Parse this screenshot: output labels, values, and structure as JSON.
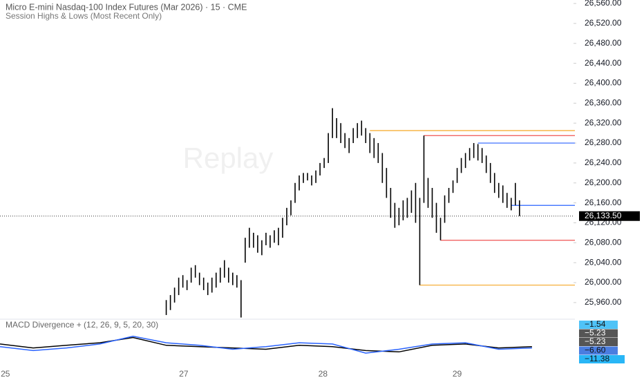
{
  "chart_data": {
    "type": "ohlc",
    "title": "Micro E-mini Nasdaq-100 Index Futures (Mar 2026) · 15 · CME",
    "subtitle": "Session Highs & Lows (Most Recent Only)",
    "watermark": "Replay",
    "color": "#000000",
    "high": [
      25965,
      25975,
      25990,
      26010,
      26015,
      26005,
      26030,
      26035,
      26020,
      26010,
      26000,
      26010,
      26020,
      26030,
      26045,
      26030,
      26020,
      26015,
      26005,
      26090,
      26110,
      26100,
      26095,
      26085,
      26100,
      26095,
      26105,
      26110,
      26130,
      26150,
      26165,
      26200,
      26215,
      26220,
      26220,
      26215,
      26225,
      26240,
      26250,
      26300,
      26350,
      26330,
      26320,
      26300,
      26290,
      26310,
      26320,
      26325,
      26310,
      26300,
      26290,
      26280,
      26260,
      26230,
      26190,
      26160,
      26150,
      26165,
      26170,
      26185,
      26200,
      26170,
      26295,
      26210,
      26190,
      26160,
      26130,
      26175,
      26190,
      26205,
      26230,
      26250,
      26260,
      26270,
      26280,
      26278,
      26270,
      26255,
      26240,
      26220,
      26200,
      26195,
      26180,
      26170,
      26200,
      26165
    ],
    "low": [
      25935,
      25945,
      25960,
      25975,
      25990,
      25985,
      26000,
      26010,
      25995,
      25985,
      25975,
      25980,
      25990,
      26000,
      26010,
      26000,
      25995,
      25990,
      25930,
      26040,
      26070,
      26070,
      26060,
      26055,
      26075,
      26070,
      26080,
      26075,
      26090,
      26115,
      26135,
      26160,
      26185,
      26200,
      26205,
      26195,
      26200,
      26215,
      26230,
      26240,
      26290,
      26290,
      26280,
      26270,
      26260,
      26280,
      26290,
      26295,
      26280,
      26260,
      26250,
      26240,
      26200,
      26170,
      26130,
      26110,
      26115,
      26125,
      26130,
      26140,
      26120,
      25995,
      26160,
      26150,
      26130,
      26100,
      26085,
      26120,
      26160,
      26180,
      26200,
      26220,
      26230,
      26245,
      26250,
      26245,
      26240,
      26220,
      26200,
      26180,
      26170,
      26160,
      26150,
      26145,
      26155,
      26133.5
    ],
    "levels": [
      {
        "value": 26305,
        "from": 49,
        "color": "#f5a623"
      },
      {
        "value": 26295,
        "from": 62,
        "color": "#ef5350"
      },
      {
        "value": 26280,
        "from": 75,
        "color": "#2962ff"
      },
      {
        "value": 26155,
        "from": 83,
        "color": "#2962ff"
      },
      {
        "value": 26085,
        "from": 66,
        "color": "#ef5350"
      },
      {
        "value": 25995,
        "from": 61,
        "color": "#f5a623"
      }
    ],
    "last_price": {
      "value": 26133.5,
      "label": "26,133.50"
    },
    "ylim": [
      25928,
      26567
    ],
    "xlim": [
      -40,
      98
    ],
    "yticks": [
      {
        "value": 25960,
        "label": "25,960.00"
      },
      {
        "value": 26000,
        "label": "26,000.00"
      },
      {
        "value": 26040,
        "label": "26,040.00"
      },
      {
        "value": 26080,
        "label": "26,080.00"
      },
      {
        "value": 26120,
        "label": "26,120.00"
      },
      {
        "value": 26160,
        "label": "26,160.00"
      },
      {
        "value": 26200,
        "label": "26,200.00"
      },
      {
        "value": 26240,
        "label": "26,240.00"
      },
      {
        "value": 26280,
        "label": "26,280.00"
      },
      {
        "value": 26320,
        "label": "26,320.00"
      },
      {
        "value": 26360,
        "label": "26,360.00"
      },
      {
        "value": 26400,
        "label": "26,400.00"
      },
      {
        "value": 26440,
        "label": "26,440.00"
      },
      {
        "value": 26480,
        "label": "26,480.00"
      },
      {
        "value": 26520,
        "label": "26,520.00"
      },
      {
        "value": 26560,
        "label": "26,560.00"
      }
    ],
    "xticks": [
      {
        "value": -38.7,
        "label": "25"
      },
      {
        "value": 4.2,
        "label": "27"
      },
      {
        "value": 37.7,
        "label": "28"
      },
      {
        "value": 70,
        "label": "29"
      }
    ],
    "indicator": {
      "title": "MACD Divergence + (12, 26, 9, 5, 20, 30)",
      "ylim": [
        -20,
        15
      ],
      "x": [
        -40,
        -32,
        -24,
        -16,
        -8,
        0,
        8,
        16,
        24,
        32,
        40,
        48,
        56,
        64,
        72,
        80,
        88
      ],
      "series": [
        {
          "color": "#000000",
          "values": [
            -3,
            -6,
            -4,
            -2,
            2,
            -4,
            -5,
            -6,
            -7,
            -4,
            -5,
            -8,
            -9,
            -4,
            -3,
            -6,
            -5
          ]
        },
        {
          "color": "#2962ff",
          "values": [
            -5,
            -8,
            -6,
            -3,
            3,
            -2,
            -4,
            -7,
            -5,
            -2,
            -3,
            -10,
            -7,
            -3,
            -2,
            -7,
            -6
          ]
        }
      ],
      "value_tags": [
        {
          "value": -1.54,
          "label": "−1.54",
          "color": "#4fc3f7"
        },
        {
          "value": -5.23,
          "label": "−5.23",
          "color": "#555555"
        },
        {
          "value": -5.23,
          "label": "−5.23",
          "color": "#555555"
        },
        {
          "value": -6.6,
          "label": "−6.60",
          "color": "#4a7de0"
        },
        {
          "value": -11.38,
          "label": "−11.38",
          "color": "#29b6f6"
        }
      ]
    }
  }
}
